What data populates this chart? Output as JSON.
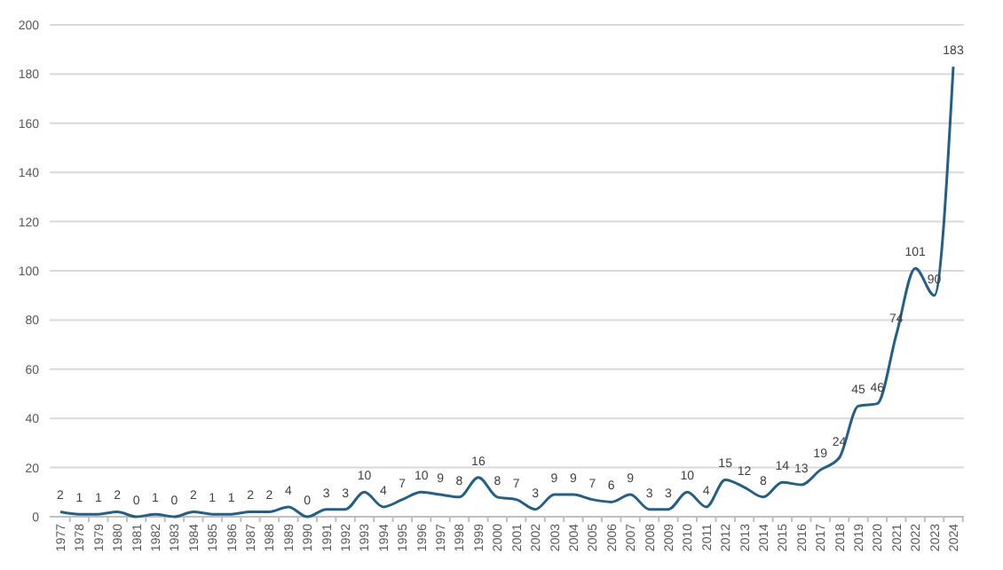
{
  "chart_data": {
    "type": "line",
    "categories": [
      "1977",
      "1978",
      "1979",
      "1980",
      "1981",
      "1982",
      "1983",
      "1984",
      "1985",
      "1986",
      "1987",
      "1988",
      "1989",
      "1990",
      "1991",
      "1992",
      "1993",
      "1994",
      "1995",
      "1996",
      "1997",
      "1998",
      "1999",
      "2000",
      "2001",
      "2002",
      "2003",
      "2004",
      "2005",
      "2006",
      "2007",
      "2008",
      "2009",
      "2010",
      "2011",
      "2012",
      "2013",
      "2014",
      "2015",
      "2016",
      "2017",
      "2018",
      "2019",
      "2020",
      "2021",
      "2022",
      "2023",
      "2024"
    ],
    "series": [
      {
        "color": "#236089",
        "values": [
          2,
          1,
          1,
          2,
          0,
          1,
          0,
          2,
          1,
          1,
          2,
          2,
          4,
          0,
          3,
          3,
          10,
          4,
          7,
          10,
          9,
          8,
          16,
          8,
          7,
          3,
          9,
          9,
          7,
          6,
          9,
          3,
          3,
          10,
          4,
          15,
          12,
          8,
          14,
          13,
          19,
          24,
          45,
          46,
          74,
          101,
          90,
          183
        ]
      }
    ],
    "ylim": [
      0,
      200
    ],
    "yticks": [
      0,
      20,
      40,
      60,
      80,
      100,
      120,
      140,
      160,
      180,
      200
    ],
    "grid": "y",
    "data_labels": true,
    "marker": "none",
    "line_style": "solid"
  }
}
